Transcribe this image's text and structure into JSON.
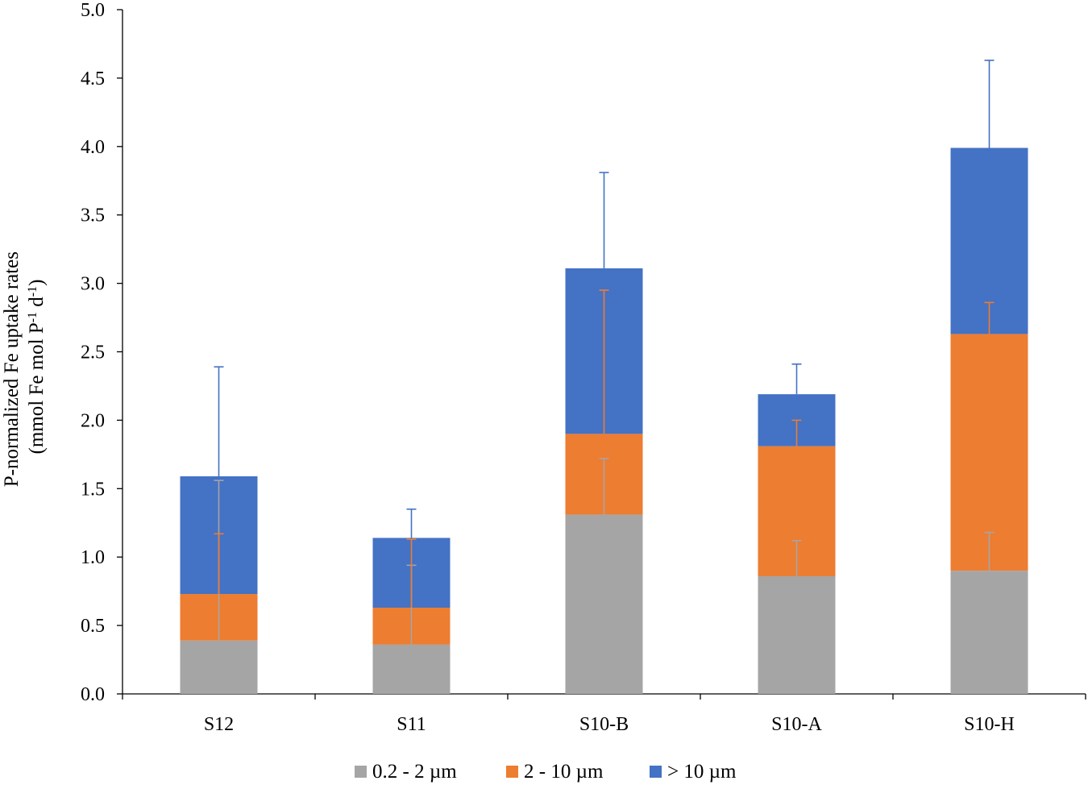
{
  "chart_data": {
    "type": "bar",
    "stacked": true,
    "title": "",
    "xlabel": "",
    "ylabel_line1": "P-normalized Fe uptake rates",
    "ylabel_line2_prefix": "(mmol Fe mol P",
    "ylabel_sup1": "-1",
    "ylabel_mid": " d",
    "ylabel_sup2": "-1",
    "ylabel_suffix": ")",
    "ylim": [
      0,
      5.0
    ],
    "yticks": [
      "0.0",
      "0.5",
      "1.0",
      "1.5",
      "2.0",
      "2.5",
      "3.0",
      "3.5",
      "4.0",
      "4.5",
      "5.0"
    ],
    "categories": [
      "S12",
      "S11",
      "S10-B",
      "S10-A",
      "S10-H"
    ],
    "series": [
      {
        "name": "0.2 - 2 µm",
        "color": "#a5a5a5",
        "values": [
          0.39,
          0.36,
          1.31,
          0.86,
          0.9
        ],
        "error_top": [
          1.56,
          0.94,
          1.72,
          1.12,
          1.18
        ]
      },
      {
        "name": "2 - 10 µm",
        "color": "#ed7d31",
        "values": [
          0.34,
          0.27,
          0.59,
          0.95,
          1.73
        ],
        "error_top": [
          1.17,
          1.13,
          2.95,
          2.0,
          2.86
        ]
      },
      {
        "name": "> 10 µm",
        "color": "#4472c4",
        "values": [
          0.86,
          0.51,
          1.21,
          0.38,
          1.36
        ],
        "error_top": [
          2.39,
          1.35,
          3.81,
          2.41,
          4.63
        ]
      }
    ],
    "legend_position": "bottom"
  }
}
